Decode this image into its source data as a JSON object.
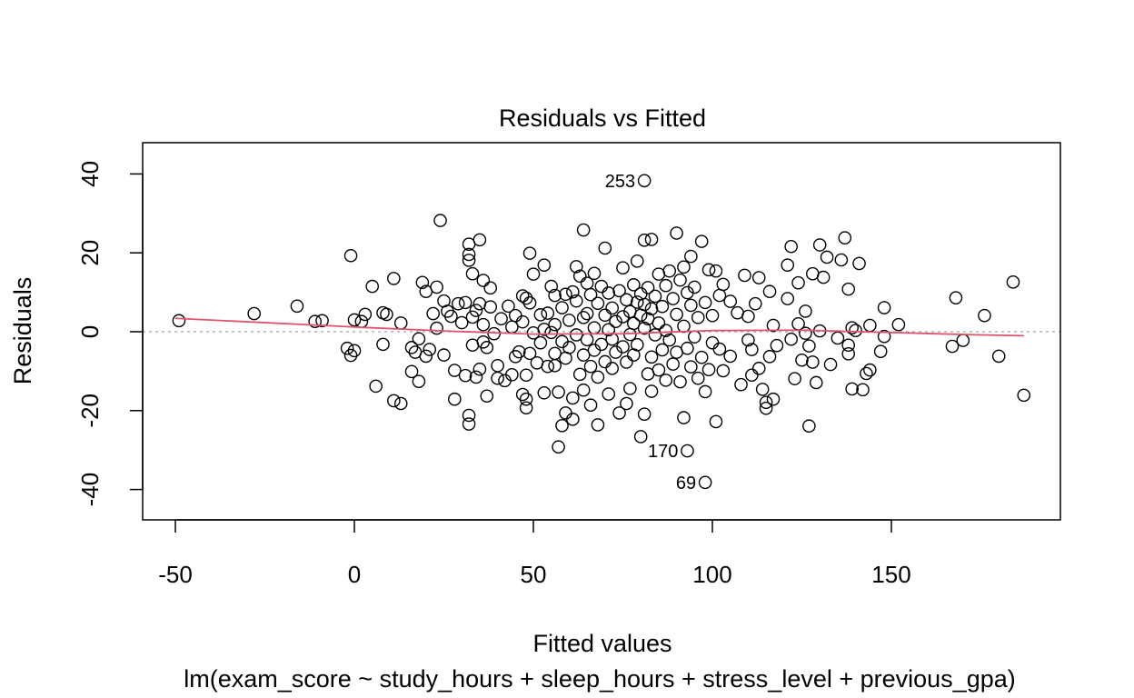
{
  "chart_data": {
    "type": "scatter",
    "title": "Residuals vs Fitted",
    "xlabel": "Fitted values",
    "ylabel": "Residuals",
    "subtitle": "lm(exam_score ~ study_hours + sleep_hours + stress_level + previous_gpa)",
    "xlim": [
      -58,
      196
    ],
    "ylim": [
      -48,
      48
    ],
    "xticks": [
      -50,
      0,
      50,
      100,
      150
    ],
    "yticks": [
      -40,
      -20,
      0,
      20,
      40
    ],
    "x_tick_labels": [
      "-50",
      "0",
      "50",
      "100",
      "150"
    ],
    "y_tick_labels": [
      "-40",
      "-20",
      "0",
      "20",
      "40"
    ],
    "grid": false,
    "reference_line": {
      "y": 0,
      "style": "dotted",
      "color": "#b3b3b3"
    },
    "smoother": {
      "color": "#df536b",
      "x": [
        -50,
        0,
        25,
        50,
        75,
        100,
        125,
        150,
        175,
        187
      ],
      "y": [
        3.4,
        1.2,
        0.2,
        -0.6,
        -0.5,
        0.3,
        0.4,
        -0.2,
        -0.8,
        -1.0
      ]
    },
    "labeled_points": [
      {
        "label": "253",
        "x": 81,
        "y": 38.3
      },
      {
        "label": "170",
        "x": 93,
        "y": -30.2
      },
      {
        "label": "69",
        "x": 98,
        "y": -38.2
      }
    ],
    "points": [
      {
        "x": -49,
        "y": 2.8
      },
      {
        "x": -28,
        "y": 4.6
      },
      {
        "x": -16,
        "y": 6.5
      },
      {
        "x": -11,
        "y": 2.6
      },
      {
        "x": -9,
        "y": 2.8
      },
      {
        "x": -1,
        "y": 19.3
      },
      {
        "x": 0,
        "y": 3.0
      },
      {
        "x": -2,
        "y": -4.2
      },
      {
        "x": -1,
        "y": -6.0
      },
      {
        "x": 0,
        "y": -4.8
      },
      {
        "x": 2,
        "y": 2.6
      },
      {
        "x": 3,
        "y": 4.4
      },
      {
        "x": 5,
        "y": 11.5
      },
      {
        "x": 6,
        "y": -13.8
      },
      {
        "x": 8,
        "y": 4.8
      },
      {
        "x": 8,
        "y": -3.2
      },
      {
        "x": 9,
        "y": 4.4
      },
      {
        "x": 11,
        "y": 13.5
      },
      {
        "x": 11,
        "y": -17.5
      },
      {
        "x": 13,
        "y": -18.2
      },
      {
        "x": 13,
        "y": 2.2
      },
      {
        "x": 16,
        "y": -4.0
      },
      {
        "x": 16,
        "y": -10.1
      },
      {
        "x": 17,
        "y": -5.2
      },
      {
        "x": 18,
        "y": -1.8
      },
      {
        "x": 18,
        "y": -12.6
      },
      {
        "x": 19,
        "y": 12.5
      },
      {
        "x": 20,
        "y": 10.2
      },
      {
        "x": 20,
        "y": -6.2
      },
      {
        "x": 21,
        "y": -4.5
      },
      {
        "x": 22,
        "y": 4.6
      },
      {
        "x": 23,
        "y": 11.3
      },
      {
        "x": 23,
        "y": 0.9
      },
      {
        "x": 24,
        "y": 28.2
      },
      {
        "x": 25,
        "y": -5.9
      },
      {
        "x": 25,
        "y": 7.8
      },
      {
        "x": 26,
        "y": 5.2
      },
      {
        "x": 27,
        "y": 3.9
      },
      {
        "x": 28,
        "y": -17.1
      },
      {
        "x": 28,
        "y": -9.8
      },
      {
        "x": 29,
        "y": 7.1
      },
      {
        "x": 30,
        "y": 2.3
      },
      {
        "x": 31,
        "y": -11.1
      },
      {
        "x": 31,
        "y": 7.4
      },
      {
        "x": 32,
        "y": 22.2
      },
      {
        "x": 32,
        "y": 19.6
      },
      {
        "x": 32,
        "y": 18.1
      },
      {
        "x": 32,
        "y": -21.2
      },
      {
        "x": 32,
        "y": -23.4
      },
      {
        "x": 33,
        "y": 14.7
      },
      {
        "x": 33,
        "y": 3.7
      },
      {
        "x": 33,
        "y": -3.4
      },
      {
        "x": 34,
        "y": -11.5
      },
      {
        "x": 34,
        "y": 5.4
      },
      {
        "x": 35,
        "y": 23.3
      },
      {
        "x": 35,
        "y": 7.1
      },
      {
        "x": 35,
        "y": -9.5
      },
      {
        "x": 36,
        "y": 13.0
      },
      {
        "x": 36,
        "y": 1.8
      },
      {
        "x": 36,
        "y": -2.6
      },
      {
        "x": 37,
        "y": -4.0
      },
      {
        "x": 37,
        "y": -16.3
      },
      {
        "x": 38,
        "y": 11.1
      },
      {
        "x": 38,
        "y": 6.3
      },
      {
        "x": 39,
        "y": -0.5
      },
      {
        "x": 40,
        "y": -8.6
      },
      {
        "x": 40,
        "y": -11.8
      },
      {
        "x": 41,
        "y": 3.3
      },
      {
        "x": 42,
        "y": -12.4
      },
      {
        "x": 43,
        "y": 6.5
      },
      {
        "x": 44,
        "y": 1.2
      },
      {
        "x": 44,
        "y": -10.9
      },
      {
        "x": 45,
        "y": 4.1
      },
      {
        "x": 45,
        "y": -6.3
      },
      {
        "x": 46,
        "y": -5.1
      },
      {
        "x": 47,
        "y": 9.1
      },
      {
        "x": 47,
        "y": 2.5
      },
      {
        "x": 47,
        "y": -15.9
      },
      {
        "x": 48,
        "y": 8.5
      },
      {
        "x": 48,
        "y": -11.0
      },
      {
        "x": 48,
        "y": -17.1
      },
      {
        "x": 48,
        "y": -19.3
      },
      {
        "x": 49,
        "y": 19.9
      },
      {
        "x": 49,
        "y": 7.3
      },
      {
        "x": 49,
        "y": -5.5
      },
      {
        "x": 50,
        "y": 14.6
      },
      {
        "x": 50,
        "y": -0.3
      },
      {
        "x": 51,
        "y": -7.9
      },
      {
        "x": 52,
        "y": 4.3
      },
      {
        "x": 52,
        "y": -2.8
      },
      {
        "x": 53,
        "y": 16.9
      },
      {
        "x": 53,
        "y": 0.6
      },
      {
        "x": 53,
        "y": -15.5
      },
      {
        "x": 54,
        "y": 4.7
      },
      {
        "x": 54,
        "y": -8.8
      },
      {
        "x": 55,
        "y": 11.5
      },
      {
        "x": 55,
        "y": -0.2
      },
      {
        "x": 56,
        "y": 9.2
      },
      {
        "x": 56,
        "y": 1.8
      },
      {
        "x": 56,
        "y": -5.5
      },
      {
        "x": 56,
        "y": -8.6
      },
      {
        "x": 57,
        "y": -15.3
      },
      {
        "x": 57,
        "y": -29.2
      },
      {
        "x": 58,
        "y": 6.1
      },
      {
        "x": 58,
        "y": -2.5
      },
      {
        "x": 58,
        "y": -23.8
      },
      {
        "x": 59,
        "y": 9.5
      },
      {
        "x": 59,
        "y": -6.7
      },
      {
        "x": 59,
        "y": -20.6
      },
      {
        "x": 60,
        "y": 2.9
      },
      {
        "x": 60,
        "y": -4.0
      },
      {
        "x": 61,
        "y": 10.1
      },
      {
        "x": 61,
        "y": -16.8
      },
      {
        "x": 61,
        "y": -22.2
      },
      {
        "x": 62,
        "y": 16.5
      },
      {
        "x": 62,
        "y": 7.8
      },
      {
        "x": 62,
        "y": -0.8
      },
      {
        "x": 63,
        "y": 14.1
      },
      {
        "x": 63,
        "y": -10.8
      },
      {
        "x": 64,
        "y": 25.8
      },
      {
        "x": 64,
        "y": 3.6
      },
      {
        "x": 64,
        "y": -5.9
      },
      {
        "x": 64,
        "y": -14.8
      },
      {
        "x": 65,
        "y": 12.3
      },
      {
        "x": 65,
        "y": 4.6
      },
      {
        "x": 65,
        "y": -2.0
      },
      {
        "x": 66,
        "y": 9.4
      },
      {
        "x": 66,
        "y": -8.8
      },
      {
        "x": 66,
        "y": -18.6
      },
      {
        "x": 67,
        "y": 14.8
      },
      {
        "x": 67,
        "y": 1.0
      },
      {
        "x": 67,
        "y": -4.7
      },
      {
        "x": 68,
        "y": 7.2
      },
      {
        "x": 68,
        "y": -11.5
      },
      {
        "x": 68,
        "y": -23.6
      },
      {
        "x": 69,
        "y": 11.5
      },
      {
        "x": 69,
        "y": -3.2
      },
      {
        "x": 70,
        "y": 21.2
      },
      {
        "x": 70,
        "y": 4.2
      },
      {
        "x": 70,
        "y": -7.6
      },
      {
        "x": 71,
        "y": 9.8
      },
      {
        "x": 71,
        "y": 0.5
      },
      {
        "x": 71,
        "y": -15.8
      },
      {
        "x": 72,
        "y": 6.0
      },
      {
        "x": 72,
        "y": -1.9
      },
      {
        "x": 72,
        "y": -9.3
      },
      {
        "x": 73,
        "y": 2.6
      },
      {
        "x": 73,
        "y": -5.2
      },
      {
        "x": 74,
        "y": 10.4
      },
      {
        "x": 74,
        "y": -20.6
      },
      {
        "x": 75,
        "y": 16.2
      },
      {
        "x": 75,
        "y": 3.8
      },
      {
        "x": 75,
        "y": -3.8
      },
      {
        "x": 76,
        "y": 8.1
      },
      {
        "x": 76,
        "y": -7.7
      },
      {
        "x": 76,
        "y": -18.2
      },
      {
        "x": 77,
        "y": 5.1
      },
      {
        "x": 77,
        "y": -0.7
      },
      {
        "x": 77,
        "y": -14.4
      },
      {
        "x": 78,
        "y": 11.9
      },
      {
        "x": 78,
        "y": 2.1
      },
      {
        "x": 78,
        "y": -5.9
      },
      {
        "x": 79,
        "y": 17.9
      },
      {
        "x": 79,
        "y": 7.5
      },
      {
        "x": 79,
        "y": -3.3
      },
      {
        "x": 80,
        "y": 9.6
      },
      {
        "x": 80,
        "y": 4.2
      },
      {
        "x": 80,
        "y": -26.6
      },
      {
        "x": 81,
        "y": 23.2
      },
      {
        "x": 81,
        "y": 6.9
      },
      {
        "x": 81,
        "y": 0.9
      },
      {
        "x": 81,
        "y": -20.9
      },
      {
        "x": 82,
        "y": 11.2
      },
      {
        "x": 82,
        "y": 3.3
      },
      {
        "x": 82,
        "y": -10.7
      },
      {
        "x": 83,
        "y": 23.4
      },
      {
        "x": 83,
        "y": 5.8
      },
      {
        "x": 83,
        "y": -6.4
      },
      {
        "x": 83,
        "y": -15.1
      },
      {
        "x": 84,
        "y": 9.0
      },
      {
        "x": 84,
        "y": -0.8
      },
      {
        "x": 85,
        "y": 14.6
      },
      {
        "x": 85,
        "y": 2.2
      },
      {
        "x": 85,
        "y": -9.7
      },
      {
        "x": 86,
        "y": 6.4
      },
      {
        "x": 86,
        "y": -4.6
      },
      {
        "x": 87,
        "y": 11.7
      },
      {
        "x": 87,
        "y": 0.3
      },
      {
        "x": 87,
        "y": -12.3
      },
      {
        "x": 88,
        "y": 15.4
      },
      {
        "x": 88,
        "y": -2.1
      },
      {
        "x": 89,
        "y": 8.4
      },
      {
        "x": 89,
        "y": -8.2
      },
      {
        "x": 90,
        "y": 25.0
      },
      {
        "x": 90,
        "y": 4.4
      },
      {
        "x": 90,
        "y": -5.2
      },
      {
        "x": 91,
        "y": 13.1
      },
      {
        "x": 91,
        "y": -12.7
      },
      {
        "x": 92,
        "y": 16.4
      },
      {
        "x": 92,
        "y": 1.4
      },
      {
        "x": 92,
        "y": -21.8
      },
      {
        "x": 93,
        "y": 9.9
      },
      {
        "x": 93,
        "y": -4.2
      },
      {
        "x": 94,
        "y": 19.1
      },
      {
        "x": 94,
        "y": 6.7
      },
      {
        "x": 94,
        "y": -8.9
      },
      {
        "x": 95,
        "y": 11.3
      },
      {
        "x": 95,
        "y": -1.3
      },
      {
        "x": 96,
        "y": 3.6
      },
      {
        "x": 96,
        "y": -11.8
      },
      {
        "x": 97,
        "y": 22.9
      },
      {
        "x": 97,
        "y": -6.5
      },
      {
        "x": 98,
        "y": 7.4
      },
      {
        "x": 98,
        "y": -15.2
      },
      {
        "x": 99,
        "y": 15.7
      },
      {
        "x": 99,
        "y": -9.6
      },
      {
        "x": 100,
        "y": 4.1
      },
      {
        "x": 100,
        "y": -2.8
      },
      {
        "x": 101,
        "y": 15.4
      },
      {
        "x": 101,
        "y": -22.8
      },
      {
        "x": 102,
        "y": 9.2
      },
      {
        "x": 102,
        "y": -4.4
      },
      {
        "x": 103,
        "y": 12.0
      },
      {
        "x": 103,
        "y": -9.9
      },
      {
        "x": 105,
        "y": 7.7
      },
      {
        "x": 105,
        "y": -6.2
      },
      {
        "x": 107,
        "y": 4.8
      },
      {
        "x": 108,
        "y": -13.4
      },
      {
        "x": 109,
        "y": 14.3
      },
      {
        "x": 110,
        "y": 3.9
      },
      {
        "x": 110,
        "y": -2.1
      },
      {
        "x": 111,
        "y": -4.5
      },
      {
        "x": 111,
        "y": -11.0
      },
      {
        "x": 112,
        "y": 7.1
      },
      {
        "x": 113,
        "y": 13.7
      },
      {
        "x": 113,
        "y": -9.3
      },
      {
        "x": 114,
        "y": -14.6
      },
      {
        "x": 115,
        "y": -17.9
      },
      {
        "x": 115,
        "y": -19.4
      },
      {
        "x": 116,
        "y": 10.2
      },
      {
        "x": 116,
        "y": -6.3
      },
      {
        "x": 117,
        "y": 1.6
      },
      {
        "x": 117,
        "y": -17.1
      },
      {
        "x": 118,
        "y": -3.5
      },
      {
        "x": 121,
        "y": 16.9
      },
      {
        "x": 121,
        "y": 8.4
      },
      {
        "x": 122,
        "y": -1.9
      },
      {
        "x": 122,
        "y": 21.6
      },
      {
        "x": 123,
        "y": -11.9
      },
      {
        "x": 124,
        "y": 12.4
      },
      {
        "x": 124,
        "y": 2.0
      },
      {
        "x": 125,
        "y": -7.2
      },
      {
        "x": 126,
        "y": 5.2
      },
      {
        "x": 126,
        "y": -0.4
      },
      {
        "x": 127,
        "y": -3.6
      },
      {
        "x": 127,
        "y": -23.9
      },
      {
        "x": 128,
        "y": 14.7
      },
      {
        "x": 128,
        "y": -7.7
      },
      {
        "x": 129,
        "y": -12.9
      },
      {
        "x": 130,
        "y": 22.0
      },
      {
        "x": 130,
        "y": 0.2
      },
      {
        "x": 131,
        "y": 13.8
      },
      {
        "x": 132,
        "y": 18.9
      },
      {
        "x": 133,
        "y": -8.3
      },
      {
        "x": 135,
        "y": -1.6
      },
      {
        "x": 136,
        "y": 18.2
      },
      {
        "x": 137,
        "y": 23.8
      },
      {
        "x": 138,
        "y": 10.8
      },
      {
        "x": 138,
        "y": -3.4
      },
      {
        "x": 138,
        "y": -5.6
      },
      {
        "x": 139,
        "y": 1.0
      },
      {
        "x": 139,
        "y": -14.5
      },
      {
        "x": 140,
        "y": 0.3
      },
      {
        "x": 141,
        "y": 17.3
      },
      {
        "x": 142,
        "y": -14.7
      },
      {
        "x": 143,
        "y": -10.6
      },
      {
        "x": 144,
        "y": -9.7
      },
      {
        "x": 144,
        "y": 1.6
      },
      {
        "x": 147,
        "y": -5.0
      },
      {
        "x": 148,
        "y": 6.1
      },
      {
        "x": 148,
        "y": -1.2
      },
      {
        "x": 152,
        "y": 1.8
      },
      {
        "x": 167,
        "y": -3.7
      },
      {
        "x": 168,
        "y": 8.6
      },
      {
        "x": 170,
        "y": -2.2
      },
      {
        "x": 176,
        "y": 4.1
      },
      {
        "x": 180,
        "y": -6.2
      },
      {
        "x": 184,
        "y": 12.6
      },
      {
        "x": 187,
        "y": -16.1
      },
      {
        "x": 81,
        "y": 38.3
      },
      {
        "x": 93,
        "y": -30.2
      },
      {
        "x": 98,
        "y": -38.2
      }
    ]
  }
}
